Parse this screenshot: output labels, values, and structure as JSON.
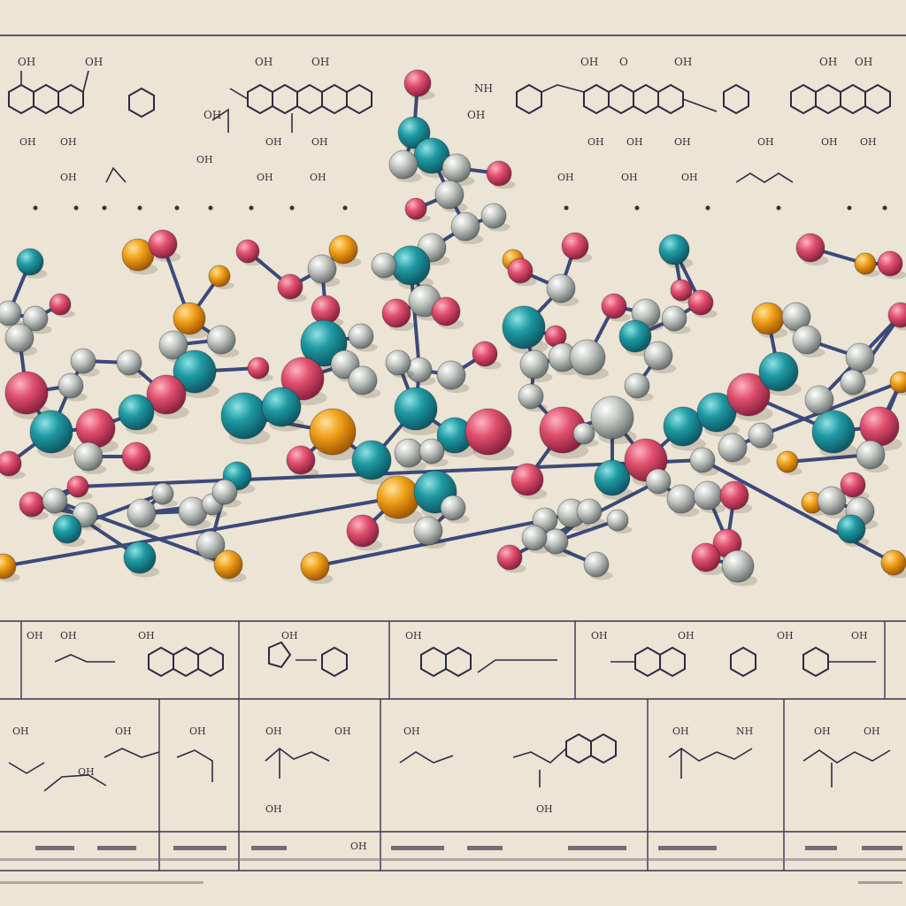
{
  "colors": {
    "background": "#ece4d4",
    "atom_teal": "#1f9aa3",
    "atom_pink": "#e0506e",
    "atom_gold": "#f0a11a",
    "atom_grey": "#c4c8c2",
    "bond": "#3b4a7a",
    "ink": "#2e2a44"
  },
  "top_labels": [
    "OH",
    "OH",
    "OH",
    "OH",
    "NH",
    "OH",
    "OH",
    "OH",
    "OH",
    "OH",
    "OH",
    "O"
  ],
  "formula_row1": [
    "OH",
    "OH",
    "OH",
    "OH",
    "OH",
    "OH",
    "OH",
    "OH",
    "OH",
    "OH"
  ],
  "formula_row2": [
    "OH",
    "OH",
    "OH",
    "OH",
    "OH",
    "OH",
    "OH"
  ],
  "bottom_labels_a": [
    "OH",
    "OH",
    "OH",
    "OH",
    "OH",
    "OH",
    "OH",
    "OH",
    "OH"
  ],
  "bottom_labels_b": [
    "OH",
    "OH",
    "OH",
    "OH",
    "OH",
    "OH",
    "OH",
    "OH",
    "OH",
    "OH",
    "NH",
    "OH",
    "OH"
  ],
  "footer_text": [
    "OH"
  ]
}
